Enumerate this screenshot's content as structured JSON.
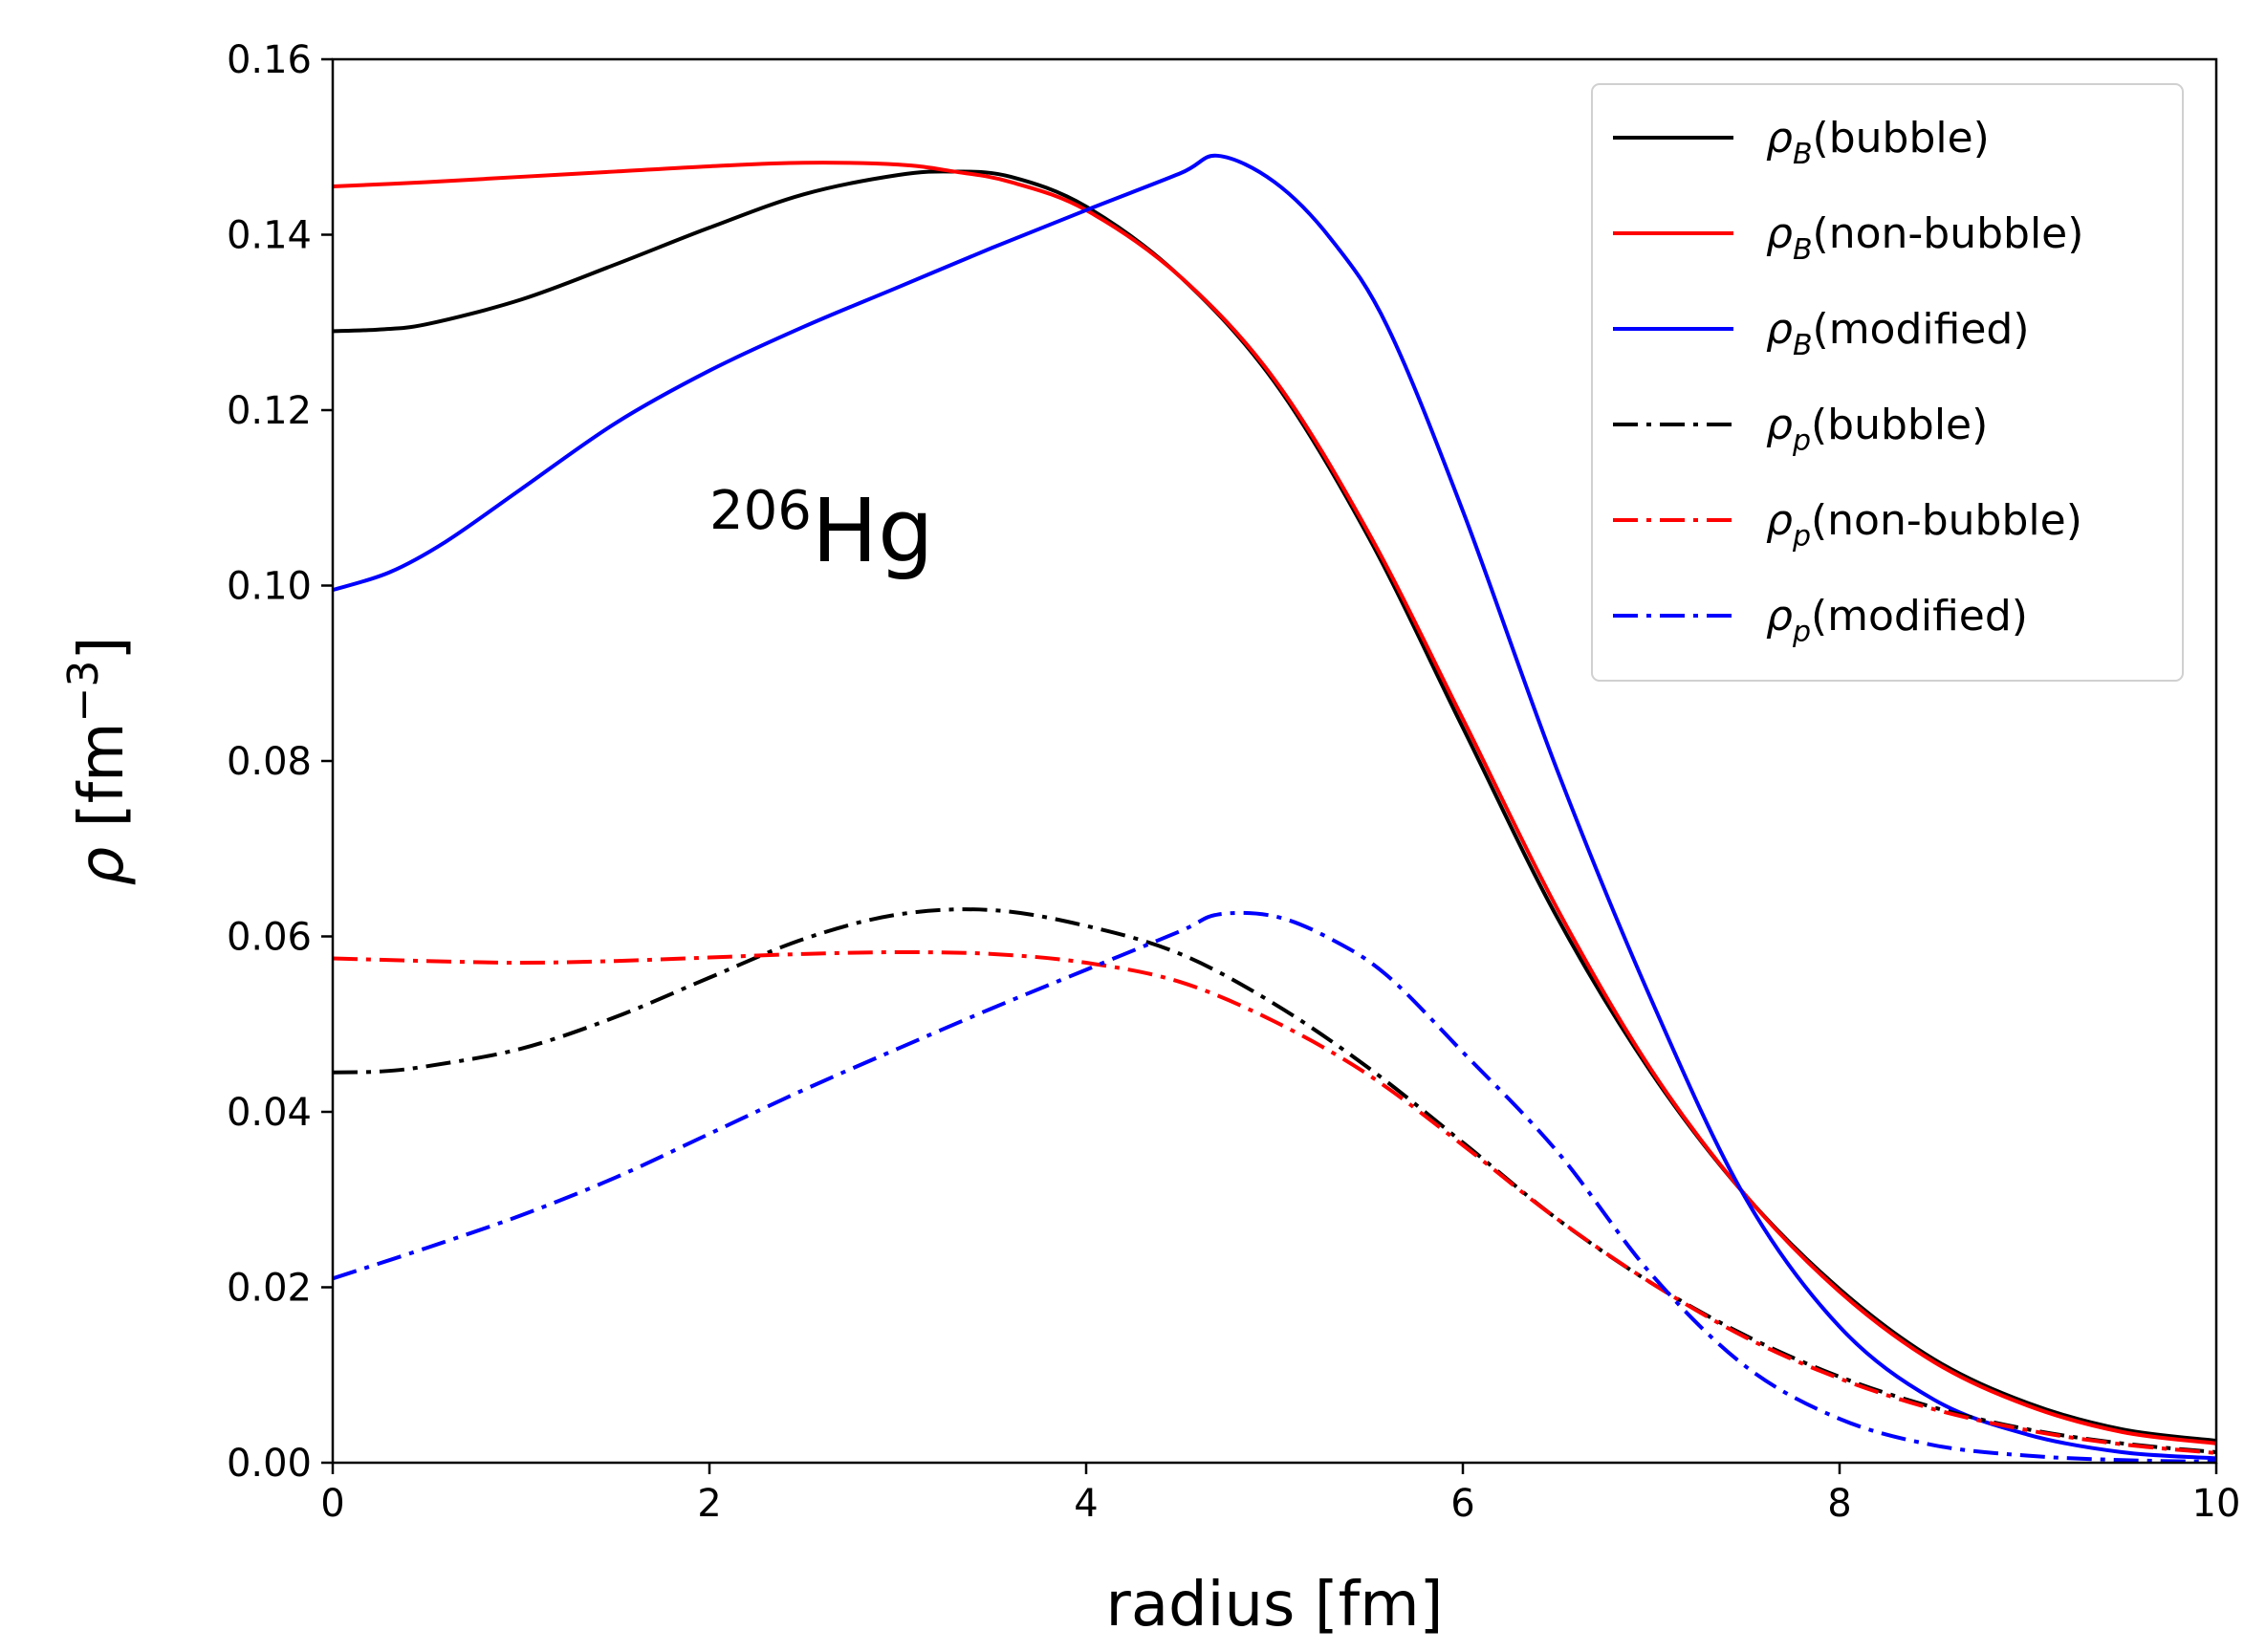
{
  "chart_data": {
    "type": "line",
    "title": "",
    "xlabel": "radius [fm]",
    "ylabel": {
      "symbol": "ρ",
      "text": " [fm",
      "exponent": "−3",
      "close": "]"
    },
    "xlim": [
      0,
      10
    ],
    "ylim": [
      0,
      0.16
    ],
    "xticks": [
      "0",
      "2",
      "4",
      "6",
      "8",
      "10"
    ],
    "xtick_values": [
      0,
      2,
      4,
      6,
      8,
      10
    ],
    "yticks": [
      "0.00",
      "0.02",
      "0.04",
      "0.06",
      "0.08",
      "0.10",
      "0.12",
      "0.14",
      "0.16"
    ],
    "ytick_values": [
      0,
      0.02,
      0.04,
      0.06,
      0.08,
      0.1,
      0.12,
      0.14,
      0.16
    ],
    "grid": false,
    "legend_position": "top-right",
    "annotation": {
      "mass": "206",
      "element": "Hg"
    },
    "series": [
      {
        "name": "ρB(bubble)",
        "symbol": "ρ",
        "sub": "B",
        "label": "(bubble)",
        "color": "#000000",
        "style": "solid",
        "x": [
          0,
          0.25,
          0.5,
          1.0,
          1.5,
          2.0,
          2.5,
          3.0,
          3.3,
          3.6,
          4.0,
          4.5,
          5.0,
          5.5,
          6.0,
          6.5,
          7.0,
          7.5,
          8.0,
          8.5,
          9.0,
          9.5,
          10.0
        ],
        "values": [
          0.129,
          0.1292,
          0.1298,
          0.1326,
          0.1366,
          0.1408,
          0.1446,
          0.1468,
          0.1472,
          0.1466,
          0.1432,
          0.1352,
          0.1232,
          0.1055,
          0.0838,
          0.0622,
          0.0445,
          0.0305,
          0.0198,
          0.0118,
          0.0068,
          0.0038,
          0.0025
        ]
      },
      {
        "name": "ρB(non-bubble)",
        "symbol": "ρ",
        "sub": "B",
        "label": "(non-bubble)",
        "color": "#ff0000",
        "style": "solid",
        "x": [
          0,
          0.5,
          1.0,
          1.5,
          2.0,
          2.5,
          3.0,
          3.3,
          3.6,
          4.0,
          4.5,
          5.0,
          5.5,
          6.0,
          6.5,
          7.0,
          7.5,
          8.0,
          8.5,
          9.0,
          9.5,
          10.0
        ],
        "values": [
          0.1455,
          0.146,
          0.1466,
          0.1472,
          0.1478,
          0.1482,
          0.148,
          0.1472,
          0.146,
          0.1428,
          0.1352,
          0.1235,
          0.106,
          0.0848,
          0.0632,
          0.0448,
          0.0305,
          0.0195,
          0.0115,
          0.0065,
          0.0035,
          0.0022
        ]
      },
      {
        "name": "ρB(modified)",
        "symbol": "ρ",
        "sub": "B",
        "label": "(modified)",
        "color": "#0000ff",
        "style": "solid",
        "x": [
          0,
          0.3,
          0.6,
          1.0,
          1.5,
          2.0,
          2.5,
          3.0,
          3.5,
          4.0,
          4.5,
          4.7,
          5.0,
          5.3,
          5.6,
          6.0,
          6.5,
          7.0,
          7.5,
          8.0,
          8.5,
          9.0,
          9.5,
          10.0
        ],
        "values": [
          0.0995,
          0.1015,
          0.105,
          0.111,
          0.1185,
          0.1245,
          0.1295,
          0.134,
          0.1385,
          0.1428,
          0.147,
          0.149,
          0.146,
          0.1395,
          0.1295,
          0.1085,
          0.079,
          0.0528,
          0.0302,
          0.0155,
          0.0072,
          0.0032,
          0.0012,
          0.0005
        ]
      },
      {
        "name": "ρp(bubble)",
        "symbol": "ρ",
        "sub": "p",
        "label": "(bubble)",
        "color": "#000000",
        "style": "dashdot",
        "x": [
          0,
          0.25,
          0.5,
          1.0,
          1.5,
          2.0,
          2.5,
          3.0,
          3.5,
          4.0,
          4.5,
          5.0,
          5.5,
          6.0,
          6.5,
          7.0,
          7.5,
          8.0,
          8.5,
          9.0,
          9.5,
          10.0
        ],
        "values": [
          0.0445,
          0.0446,
          0.0452,
          0.0472,
          0.0508,
          0.0553,
          0.0597,
          0.0625,
          0.063,
          0.0612,
          0.058,
          0.0523,
          0.045,
          0.0365,
          0.0278,
          0.0205,
          0.0145,
          0.0098,
          0.0063,
          0.0038,
          0.0022,
          0.0012
        ]
      },
      {
        "name": "ρp(non-bubble)",
        "symbol": "ρ",
        "sub": "p",
        "label": "(non-bubble)",
        "color": "#ff0000",
        "style": "dashdot",
        "x": [
          0,
          0.5,
          1.0,
          1.5,
          2.0,
          2.5,
          3.0,
          3.5,
          4.0,
          4.5,
          5.0,
          5.5,
          6.0,
          6.5,
          7.0,
          7.5,
          8.0,
          8.5,
          9.0,
          9.5,
          10.0
        ],
        "values": [
          0.0575,
          0.0572,
          0.057,
          0.0572,
          0.0576,
          0.058,
          0.0582,
          0.058,
          0.057,
          0.0548,
          0.0503,
          0.0442,
          0.0362,
          0.0278,
          0.0205,
          0.0143,
          0.0096,
          0.0061,
          0.0037,
          0.0021,
          0.0011
        ]
      },
      {
        "name": "ρp(modified)",
        "symbol": "ρ",
        "sub": "p",
        "label": "(modified)",
        "color": "#0000ff",
        "style": "dashdot",
        "x": [
          0,
          0.5,
          1.0,
          1.5,
          2.0,
          2.5,
          3.0,
          3.5,
          4.0,
          4.5,
          4.7,
          5.0,
          5.3,
          5.6,
          6.0,
          6.5,
          7.0,
          7.5,
          8.0,
          8.5,
          9.0,
          9.5,
          10.0
        ],
        "values": [
          0.021,
          0.0245,
          0.0282,
          0.0325,
          0.0375,
          0.0425,
          0.0472,
          0.0518,
          0.0562,
          0.0606,
          0.0625,
          0.0623,
          0.0597,
          0.0555,
          0.0468,
          0.0355,
          0.0215,
          0.011,
          0.005,
          0.002,
          0.0008,
          0.0003,
          0.0001
        ]
      }
    ]
  }
}
